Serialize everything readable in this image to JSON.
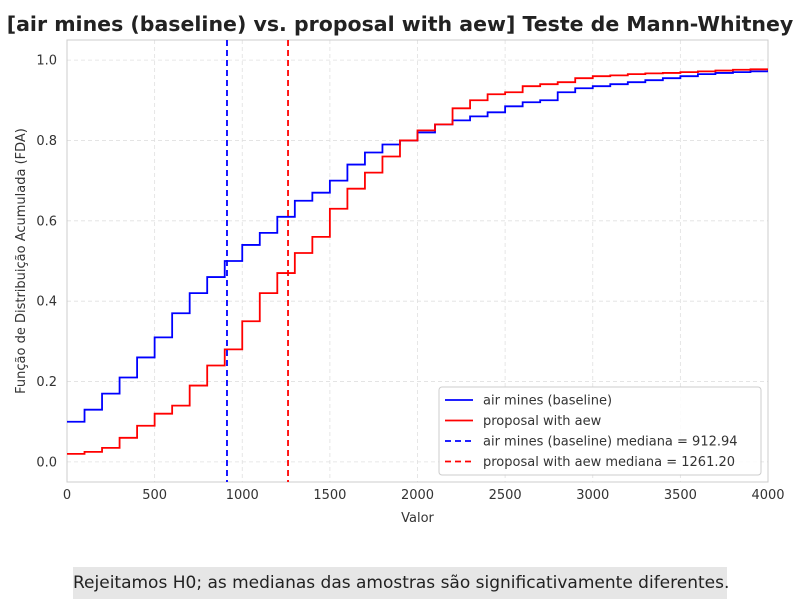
{
  "chart_data": {
    "type": "line",
    "title": "[air mines (baseline) vs. proposal with aew] Teste de Mann-Whitney",
    "xlabel": "Valor",
    "ylabel": "Função de Distribuição Acumulada (FDA)",
    "xlim": [
      0,
      4000
    ],
    "ylim": [
      -0.05,
      1.05
    ],
    "xticks": [
      0,
      500,
      1000,
      1500,
      2000,
      2500,
      3000,
      3500,
      4000
    ],
    "yticks": [
      0.0,
      0.2,
      0.4,
      0.6,
      0.8,
      1.0
    ],
    "xtick_labels": [
      "0",
      "500",
      "1000",
      "1500",
      "2000",
      "2500",
      "3000",
      "3500",
      "4000"
    ],
    "ytick_labels": [
      "0.0",
      "0.2",
      "0.4",
      "0.6",
      "0.8",
      "1.0"
    ],
    "grid": true,
    "legend_position": "lower-right",
    "series": [
      {
        "name": "air mines (baseline)",
        "color": "#0000ff",
        "x": [
          0,
          100,
          200,
          300,
          400,
          500,
          600,
          700,
          800,
          900,
          1000,
          1100,
          1200,
          1300,
          1400,
          1500,
          1600,
          1700,
          1800,
          1900,
          2000,
          2100,
          2200,
          2300,
          2400,
          2500,
          2600,
          2700,
          2800,
          2900,
          3000,
          3100,
          3200,
          3300,
          3400,
          3500,
          3600,
          3700,
          3800,
          3900,
          4000
        ],
        "y": [
          0.1,
          0.13,
          0.17,
          0.21,
          0.26,
          0.31,
          0.37,
          0.42,
          0.46,
          0.5,
          0.54,
          0.57,
          0.61,
          0.65,
          0.67,
          0.7,
          0.74,
          0.77,
          0.79,
          0.8,
          0.82,
          0.84,
          0.85,
          0.86,
          0.87,
          0.885,
          0.895,
          0.9,
          0.92,
          0.93,
          0.935,
          0.94,
          0.945,
          0.95,
          0.955,
          0.96,
          0.965,
          0.968,
          0.97,
          0.972,
          0.975
        ]
      },
      {
        "name": "proposal with aew",
        "color": "#ff0000",
        "x": [
          0,
          100,
          200,
          300,
          400,
          500,
          600,
          700,
          800,
          900,
          1000,
          1100,
          1200,
          1300,
          1400,
          1500,
          1600,
          1700,
          1800,
          1900,
          2000,
          2100,
          2200,
          2300,
          2400,
          2500,
          2600,
          2700,
          2800,
          2900,
          3000,
          3100,
          3200,
          3300,
          3400,
          3500,
          3600,
          3700,
          3800,
          3900,
          4000
        ],
        "y": [
          0.02,
          0.025,
          0.035,
          0.06,
          0.09,
          0.12,
          0.14,
          0.19,
          0.24,
          0.28,
          0.35,
          0.42,
          0.47,
          0.52,
          0.56,
          0.63,
          0.68,
          0.72,
          0.76,
          0.8,
          0.825,
          0.84,
          0.88,
          0.9,
          0.915,
          0.92,
          0.935,
          0.94,
          0.945,
          0.955,
          0.96,
          0.962,
          0.965,
          0.967,
          0.968,
          0.97,
          0.972,
          0.974,
          0.976,
          0.977,
          0.978
        ]
      }
    ],
    "median_lines": [
      {
        "label": "air mines (baseline) mediana = 912.94",
        "value": 912.94,
        "color": "#0000ff"
      },
      {
        "label": "proposal with aew mediana = 1261.20",
        "value": 1261.2,
        "color": "#ff0000"
      }
    ]
  },
  "footnote": "Rejeitamos H0; as medianas das amostras são significativamente diferentes."
}
